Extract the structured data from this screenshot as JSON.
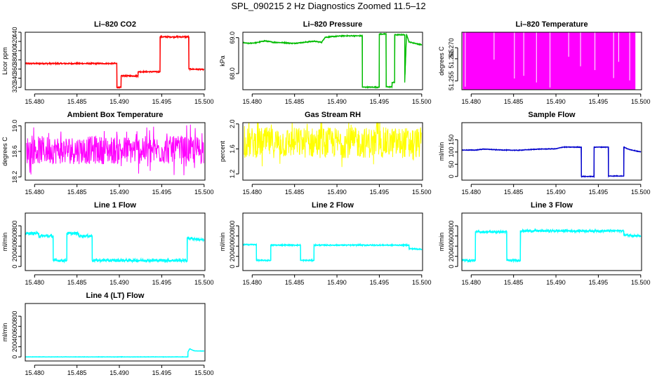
{
  "page_title": "SPL_090215  2 Hz Diagnostics Zoomed 11.5–12",
  "x_ticks": [
    "15.480",
    "15.485",
    "15.490",
    "15.495",
    "15.500"
  ],
  "chart_data": [
    {
      "type": "line",
      "title": "Li–820 CO2",
      "ylabel": "Licor ppm",
      "color": "#ff0000",
      "xlim": [
        15.4789,
        15.5001
      ],
      "ylim": [
        315,
        440
      ],
      "y_ticks": [
        "320",
        "340",
        "360",
        "380",
        "400",
        "420",
        "440"
      ],
      "y_tick_values": [
        320,
        340,
        360,
        380,
        400,
        420,
        440
      ],
      "noise": 1.5,
      "series": [
        {
          "x": [
            15.4789,
            15.4897,
            15.4897,
            15.4902,
            15.4902,
            15.4922,
            15.4922,
            15.4948,
            15.4948,
            15.4982,
            15.4982,
            15.5
          ],
          "y": [
            372,
            372,
            320,
            320,
            345,
            345,
            354,
            354,
            430,
            430,
            360,
            359
          ]
        }
      ]
    },
    {
      "type": "line",
      "title": "Li–820 Pressure",
      "ylabel": "kPa",
      "color": "#00bb00",
      "xlim": [
        15.4789,
        15.5001
      ],
      "ylim": [
        67.55,
        69.15
      ],
      "y_ticks": [
        "68.0",
        "69.0"
      ],
      "y_tick_values": [
        68.0,
        69.0
      ],
      "noise": 0.015,
      "series": [
        {
          "x": [
            15.4789,
            15.4795,
            15.4805,
            15.4815,
            15.4825,
            15.4838,
            15.4848,
            15.4858,
            15.4865,
            15.4873,
            15.4882,
            15.4886,
            15.4895,
            15.4907,
            15.4913,
            15.493,
            15.493,
            15.495,
            15.495,
            15.4958,
            15.4958,
            15.4965,
            15.4965,
            15.4968,
            15.4968,
            15.498,
            15.498,
            15.4982,
            15.4985,
            15.5
          ],
          "y": [
            68.86,
            68.84,
            68.86,
            68.91,
            68.87,
            68.86,
            68.84,
            68.86,
            68.88,
            68.9,
            68.87,
            69.01,
            69.03,
            69.05,
            69.05,
            69.05,
            67.62,
            67.62,
            69.1,
            69.1,
            67.63,
            67.63,
            67.75,
            67.75,
            69.08,
            69.08,
            67.75,
            69.1,
            68.88,
            68.8
          ]
        }
      ]
    },
    {
      "type": "line",
      "title": "Li–820 Temperature",
      "ylabel": "degrees C",
      "color": "#ff00ff",
      "xlim": [
        15.4789,
        15.5001
      ],
      "ylim": [
        51.251,
        51.277
      ],
      "y_ticks": [
        "51.255",
        "51.265",
        "51.270"
      ],
      "y_tick_values": [
        51.255,
        51.265,
        51.27
      ],
      "fill_band": [
        51.251,
        51.277
      ],
      "gaps_x": [
        15.4793,
        15.4827,
        15.4851,
        15.4862,
        15.4877,
        15.4893,
        15.4915,
        15.4929,
        15.4946,
        15.4968,
        15.4974,
        15.4987,
        15.4996
      ]
    },
    {
      "type": "line",
      "title": "Ambient Box Temperature",
      "ylabel": "degrees C",
      "color": "#ff00ff",
      "xlim": [
        15.4789,
        15.5001
      ],
      "ylim": [
        18.15,
        19.05
      ],
      "y_ticks": [
        "18.2",
        "18.6",
        "19.0"
      ],
      "y_tick_values": [
        18.2,
        18.6,
        19.0
      ],
      "noise_band": [
        18.2,
        19.0
      ],
      "band_center": 18.62
    },
    {
      "type": "line",
      "title": "Gas Stream RH",
      "ylabel": "percent",
      "color": "#ffff00",
      "xlim": [
        15.4789,
        15.5001
      ],
      "ylim": [
        1.1,
        2.02
      ],
      "y_ticks": [
        "1.2",
        "1.6",
        "2.0"
      ],
      "y_tick_values": [
        1.2,
        1.6,
        2.0
      ],
      "noise_band": [
        1.1,
        2.0
      ],
      "band_center": 1.7
    },
    {
      "type": "line",
      "title": "Sample Flow",
      "ylabel": "ml/min",
      "color": "#0000cc",
      "xlim": [
        15.4789,
        15.5001
      ],
      "ylim": [
        -15,
        220
      ],
      "y_ticks": [
        "0",
        "50",
        "100",
        "150"
      ],
      "y_tick_values": [
        0,
        50,
        100,
        150
      ],
      "noise": 1.5,
      "series": [
        {
          "x": [
            15.4789,
            15.4805,
            15.4815,
            15.483,
            15.484,
            15.4855,
            15.487,
            15.488,
            15.49,
            15.4908,
            15.493,
            15.493,
            15.4945,
            15.4945,
            15.4962,
            15.4962,
            15.498,
            15.498,
            15.4985,
            15.5
          ],
          "y": [
            108,
            108,
            112,
            109,
            108,
            107,
            110,
            112,
            113,
            120,
            120,
            0,
            0,
            120,
            120,
            2,
            2,
            120,
            112,
            100
          ]
        }
      ]
    },
    {
      "type": "line",
      "title": "Line 1 Flow",
      "ylabel": "ml/min",
      "color": "#00ffff",
      "xlim": [
        15.4789,
        15.5001
      ],
      "ylim": [
        -80,
        1050
      ],
      "y_ticks": [
        "0",
        "200",
        "400",
        "600",
        "800"
      ],
      "y_tick_values": [
        0,
        200,
        400,
        600,
        800
      ],
      "noise": 30,
      "series": [
        {
          "x": [
            15.4789,
            15.4805,
            15.4805,
            15.4822,
            15.4822,
            15.4838,
            15.4838,
            15.4852,
            15.4852,
            15.4868,
            15.4868,
            15.498,
            15.498,
            15.5
          ],
          "y": [
            650,
            650,
            600,
            600,
            120,
            120,
            650,
            650,
            600,
            600,
            120,
            120,
            560,
            520
          ]
        }
      ]
    },
    {
      "type": "line",
      "title": "Line 2 Flow",
      "ylabel": "ml/min",
      "color": "#00ffff",
      "xlim": [
        15.4789,
        15.5001
      ],
      "ylim": [
        -80,
        1050
      ],
      "y_ticks": [
        "0",
        "200",
        "400",
        "600",
        "800"
      ],
      "y_tick_values": [
        0,
        200,
        400,
        600,
        800
      ],
      "noise": 12,
      "series": [
        {
          "x": [
            15.4789,
            15.4805,
            15.4805,
            15.4822,
            15.4822,
            15.4857,
            15.4857,
            15.4873,
            15.4873,
            15.4985,
            15.4985,
            15.5
          ],
          "y": [
            430,
            430,
            120,
            120,
            420,
            420,
            120,
            120,
            420,
            420,
            350,
            340
          ]
        }
      ]
    },
    {
      "type": "line",
      "title": "Line 3 Flow",
      "ylabel": "ml/min",
      "color": "#00ffff",
      "xlim": [
        15.4789,
        15.5001
      ],
      "ylim": [
        -80,
        1050
      ],
      "y_ticks": [
        "0",
        "200",
        "400",
        "600",
        "800"
      ],
      "y_tick_values": [
        0,
        200,
        400,
        600,
        800
      ],
      "noise": 25,
      "series": [
        {
          "x": [
            15.4789,
            15.4805,
            15.4805,
            15.4842,
            15.4842,
            15.4858,
            15.4858,
            15.498,
            15.498,
            15.5
          ],
          "y": [
            120,
            120,
            680,
            680,
            120,
            120,
            700,
            700,
            620,
            600
          ]
        }
      ]
    },
    {
      "type": "line",
      "title": "Line 4 (LT) Flow",
      "ylabel": "ml/min",
      "color": "#00ffff",
      "xlim": [
        15.4789,
        15.5001
      ],
      "ylim": [
        -80,
        1050
      ],
      "y_ticks": [
        "0",
        "200",
        "400",
        "600",
        "800"
      ],
      "y_tick_values": [
        0,
        200,
        400,
        600,
        800
      ],
      "noise": 4,
      "series": [
        {
          "x": [
            15.4789,
            15.4981,
            15.4981,
            15.4983,
            15.4988,
            15.5
          ],
          "y": [
            0,
            0,
            100,
            160,
            120,
            115
          ]
        }
      ]
    }
  ]
}
